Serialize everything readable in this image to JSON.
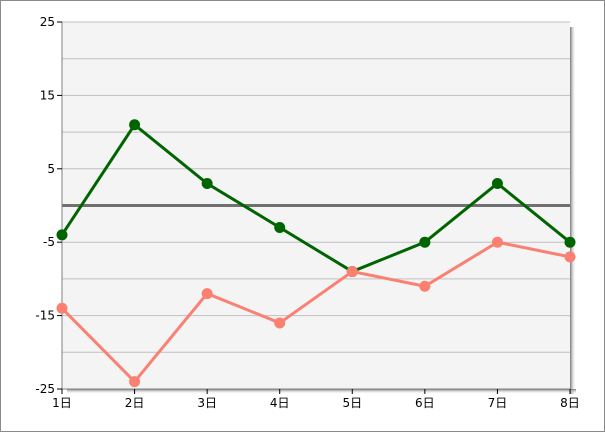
{
  "chart_data": {
    "type": "line",
    "title": "",
    "xlabel": "",
    "ylabel": "",
    "categories": [
      "1日",
      "2日",
      "3日",
      "4日",
      "5日",
      "6日",
      "7日",
      "8日"
    ],
    "ylim": [
      -25,
      25
    ],
    "y_ticks": [
      "25",
      "15",
      "5",
      "-5",
      "-15",
      "-25"
    ],
    "grid": true,
    "grid_step": 5,
    "zero_line": true,
    "series": [
      {
        "color": "#006400",
        "values": [
          -4,
          11,
          3,
          -3,
          -9,
          -5,
          3,
          -5
        ]
      },
      {
        "color": "#FA8072",
        "values": [
          -14,
          -24,
          -12,
          -16,
          -9,
          -11,
          -5,
          -7
        ]
      }
    ],
    "plot_background": "#F4F4F4",
    "grid_color": "#C0C0C0",
    "zero_line_color": "#707070"
  }
}
